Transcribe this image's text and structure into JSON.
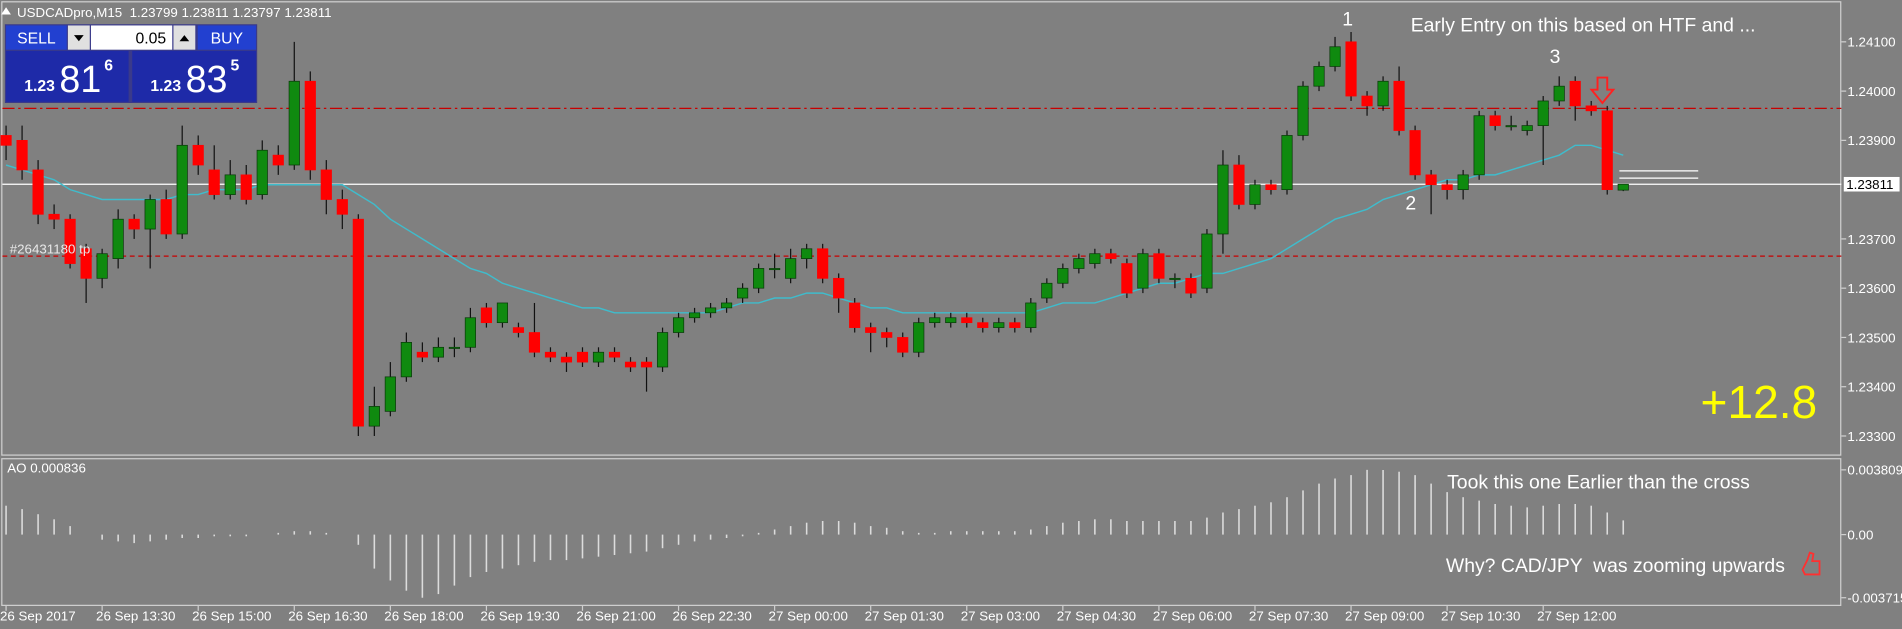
{
  "chart_data": {
    "type": "candlestick",
    "title": "USDCADpro,M15  1.23799 1.23811 1.23797 1.23811",
    "categories": [
      "26 Sep 2017",
      null,
      null,
      null,
      null,
      null,
      "26 Sep 13:30",
      null,
      null,
      null,
      null,
      null,
      "26 Sep 15:00",
      null,
      null,
      null,
      null,
      null,
      "26 Sep 16:30",
      null,
      null,
      null,
      null,
      null,
      "26 Sep 18:00",
      null,
      null,
      null,
      null,
      null,
      "26 Sep 19:30",
      null,
      null,
      null,
      null,
      null,
      "26 Sep 21:00",
      null,
      null,
      null,
      null,
      null,
      "26 Sep 22:30",
      null,
      null,
      null,
      null,
      null,
      "27 Sep 00:00",
      null,
      null,
      null,
      null,
      null,
      "27 Sep 01:30",
      null,
      null,
      null,
      null,
      null,
      "27 Sep 03:00",
      null,
      null,
      null,
      null,
      null,
      "27 Sep 04:30",
      null,
      null,
      null,
      null,
      null,
      "27 Sep 06:00",
      null,
      null,
      null,
      null,
      null,
      "27 Sep 07:30",
      null,
      null,
      null,
      null,
      null,
      "27 Sep 09:00",
      null,
      null,
      null,
      null,
      null,
      "27 Sep 10:30",
      null,
      null,
      null,
      null,
      null,
      "27 Sep 12:00",
      null,
      null,
      null,
      null,
      null
    ],
    "open": [
      1.2391,
      1.239,
      1.2384,
      1.2375,
      1.2374,
      1.2368,
      1.2362,
      1.2366,
      1.2374,
      1.2372,
      1.2378,
      1.2371,
      1.2389,
      1.2384,
      1.2379,
      1.2383,
      1.2379,
      1.2387,
      1.2385,
      1.2402,
      1.2384,
      1.2378,
      1.2374,
      1.2332,
      1.2335,
      1.2342,
      1.2347,
      1.2346,
      1.2348,
      1.2348,
      1.2356,
      1.2353,
      1.2352,
      1.2351,
      1.2347,
      1.2346,
      1.2347,
      1.2345,
      1.2347,
      1.2345,
      1.2345,
      1.2344,
      1.2351,
      1.2354,
      1.2355,
      1.2356,
      1.2358,
      1.236,
      1.2364,
      1.2362,
      1.2366,
      1.2368,
      1.2362,
      1.2357,
      1.2352,
      1.2351,
      1.235,
      1.2347,
      1.2353,
      1.2353,
      1.2354,
      1.2353,
      1.2352,
      1.2353,
      1.2352,
      1.2358,
      1.2361,
      1.2364,
      1.2365,
      1.2367,
      1.2365,
      1.236,
      1.2367,
      1.2362,
      1.2362,
      1.236,
      1.2371,
      1.2385,
      1.2377,
      1.2381,
      1.238,
      1.2391,
      1.2401,
      1.2405,
      1.241,
      1.2399,
      1.2397,
      1.2402,
      1.2392,
      1.2383,
      1.2381,
      1.238,
      1.2383,
      1.2395,
      1.2393,
      1.2392,
      1.2393,
      1.2398,
      1.2402,
      1.2397,
      1.2396,
      1.23799
    ],
    "high": [
      1.2393,
      1.2393,
      1.2386,
      1.2377,
      1.2375,
      1.2369,
      1.2368,
      1.2376,
      1.2375,
      1.2379,
      1.238,
      1.2393,
      1.2391,
      1.2389,
      1.2386,
      1.2385,
      1.239,
      1.2389,
      1.241,
      1.2404,
      1.2386,
      1.238,
      1.2375,
      1.234,
      1.2345,
      1.2351,
      1.2349,
      1.235,
      1.235,
      1.2356,
      1.2357,
      1.2357,
      1.2353,
      1.2357,
      1.2348,
      1.2347,
      1.2348,
      1.2348,
      1.2348,
      1.2346,
      1.2346,
      1.2352,
      1.2355,
      1.2356,
      1.2357,
      1.2358,
      1.2361,
      1.2365,
      1.2367,
      1.2368,
      1.2369,
      1.2369,
      1.2363,
      1.2358,
      1.2353,
      1.2352,
      1.2351,
      1.2354,
      1.2355,
      1.2355,
      1.2355,
      1.2354,
      1.2354,
      1.2354,
      1.2358,
      1.2362,
      1.2365,
      1.2367,
      1.2368,
      1.2368,
      1.2366,
      1.2368,
      1.2368,
      1.2363,
      1.2363,
      1.2372,
      1.2388,
      1.2387,
      1.2382,
      1.2382,
      1.2392,
      1.2402,
      1.2406,
      1.2411,
      1.2412,
      1.24,
      1.2403,
      1.2405,
      1.2393,
      1.2384,
      1.2382,
      1.2384,
      1.2396,
      1.2396,
      1.2395,
      1.2394,
      1.2399,
      1.2403,
      1.2403,
      1.2398,
      1.2397,
      1.23811
    ],
    "low": [
      1.2386,
      1.2382,
      1.2373,
      1.2372,
      1.2364,
      1.2357,
      1.236,
      1.2364,
      1.237,
      1.2364,
      1.237,
      1.237,
      1.2383,
      1.2378,
      1.2378,
      1.2377,
      1.2378,
      1.2383,
      1.2384,
      1.2382,
      1.2375,
      1.2372,
      1.233,
      1.233,
      1.2334,
      1.2341,
      1.2345,
      1.2345,
      1.2346,
      1.2347,
      1.2352,
      1.2352,
      1.235,
      1.2346,
      1.2345,
      1.2343,
      1.2344,
      1.2344,
      1.2345,
      1.2343,
      1.2339,
      1.2343,
      1.235,
      1.2353,
      1.2354,
      1.2355,
      1.2357,
      1.2359,
      1.2362,
      1.2361,
      1.2364,
      1.2361,
      1.2355,
      1.2351,
      1.2347,
      1.2348,
      1.2346,
      1.2346,
      1.2352,
      1.2352,
      1.2352,
      1.2351,
      1.2351,
      1.2351,
      1.2351,
      1.2357,
      1.236,
      1.2363,
      1.2364,
      1.2365,
      1.2358,
      1.2359,
      1.2361,
      1.236,
      1.2358,
      1.2359,
      1.2367,
      1.2376,
      1.2376,
      1.2379,
      1.2379,
      1.239,
      1.24,
      1.2404,
      1.2398,
      1.2395,
      1.2396,
      1.2391,
      1.2382,
      1.2375,
      1.2378,
      1.2378,
      1.2382,
      1.2392,
      1.2392,
      1.2391,
      1.2385,
      1.2397,
      1.2394,
      1.2395,
      1.2379,
      1.23797
    ],
    "close": [
      1.2389,
      1.2384,
      1.2375,
      1.2374,
      1.2365,
      1.2362,
      1.2367,
      1.2374,
      1.2372,
      1.2378,
      1.2371,
      1.2389,
      1.2385,
      1.2379,
      1.2383,
      1.2378,
      1.2388,
      1.2385,
      1.2402,
      1.2384,
      1.2378,
      1.2375,
      1.2332,
      1.2336,
      1.2342,
      1.2349,
      1.2346,
      1.2348,
      1.2348,
      1.2354,
      1.2353,
      1.2357,
      1.2351,
      1.2347,
      1.2346,
      1.2345,
      1.2345,
      1.2347,
      1.2346,
      1.2344,
      1.2344,
      1.2351,
      1.2354,
      1.2355,
      1.2356,
      1.2357,
      1.236,
      1.2364,
      1.2364,
      1.2366,
      1.2368,
      1.2362,
      1.2358,
      1.2352,
      1.2351,
      1.235,
      1.2347,
      1.2353,
      1.2354,
      1.2354,
      1.2353,
      1.2352,
      1.2353,
      1.2352,
      1.2357,
      1.2361,
      1.2364,
      1.2366,
      1.2367,
      1.2366,
      1.2359,
      1.2367,
      1.2362,
      1.2362,
      1.2359,
      1.2371,
      1.2385,
      1.2377,
      1.2381,
      1.238,
      1.2391,
      1.2401,
      1.2405,
      1.2409,
      1.2399,
      1.2397,
      1.2402,
      1.2392,
      1.2383,
      1.2381,
      1.238,
      1.2383,
      1.2395,
      1.2393,
      1.2393,
      1.2393,
      1.2398,
      1.2401,
      1.2397,
      1.2396,
      1.238,
      1.23811
    ],
    "up_color": "#0f8a0f",
    "down_color": "#ff0000",
    "ylim": [
      1.2326,
      1.2418
    ],
    "yticks": [
      {
        "value": 1.233,
        "label": "1.23300"
      },
      {
        "value": 1.234,
        "label": "1.23400"
      },
      {
        "value": 1.235,
        "label": "1.23500"
      },
      {
        "value": 1.236,
        "label": "1.23600"
      },
      {
        "value": 1.237,
        "label": "1.23700"
      },
      {
        "value": 1.239,
        "label": "1.23900"
      },
      {
        "value": 1.24,
        "label": "1.24000"
      },
      {
        "value": 1.241,
        "label": "1.24100"
      }
    ],
    "ma": {
      "color": "#3fbccc",
      "values": [
        1.2385,
        1.2384,
        1.2383,
        1.2382,
        1.238,
        1.2379,
        1.2378,
        1.2378,
        1.2378,
        1.2378,
        1.2378,
        1.2379,
        1.2379,
        1.238,
        1.238,
        1.238,
        1.2381,
        1.2381,
        1.2381,
        1.2381,
        1.2381,
        1.2381,
        1.2379,
        1.2377,
        1.2374,
        1.2372,
        1.237,
        1.2368,
        1.2366,
        1.2364,
        1.2363,
        1.2361,
        1.236,
        1.2359,
        1.2358,
        1.2357,
        1.2356,
        1.2356,
        1.2355,
        1.2355,
        1.2355,
        1.2355,
        1.2355,
        1.2355,
        1.2355,
        1.2356,
        1.2357,
        1.2357,
        1.2358,
        1.2358,
        1.2359,
        1.2359,
        1.2358,
        1.2357,
        1.2356,
        1.2356,
        1.2355,
        1.2355,
        1.2355,
        1.2355,
        1.2355,
        1.2355,
        1.2355,
        1.2355,
        1.2355,
        1.2356,
        1.2357,
        1.2357,
        1.2357,
        1.2358,
        1.2359,
        1.236,
        1.2361,
        1.2361,
        1.2362,
        1.2363,
        1.2363,
        1.2364,
        1.2365,
        1.2366,
        1.2368,
        1.237,
        1.2372,
        1.2374,
        1.2375,
        1.2376,
        1.2378,
        1.2379,
        1.238,
        1.2381,
        1.2382,
        1.2382,
        1.2383,
        1.2383,
        1.2384,
        1.2385,
        1.2386,
        1.2387,
        1.2389,
        1.2389,
        1.2388,
        1.2387
      ]
    },
    "hlines": [
      {
        "value": 1.23965,
        "color": "#c80000",
        "dash": "10 3 2 3"
      },
      {
        "value": 1.23665,
        "color": "#c80000",
        "dash": "4 3"
      }
    ],
    "hline_label": "#26431180 tp",
    "current_price": 1.23811,
    "annotations": [
      "1",
      "2",
      "3",
      "Early Entry on this based on HTF and ...",
      "+12.8",
      "Took this one Earlier than the cross",
      "Why? CAD/JPY  was zooming upwards"
    ],
    "indicator": {
      "type": "bar",
      "label": "AO 0.000836",
      "color": "#dcdcdc",
      "values": [
        0.0017,
        0.0015,
        0.0012,
        0.0009,
        0.0005,
        0.0,
        -0.0003,
        -0.0004,
        -0.0005,
        -0.0004,
        -0.0003,
        -0.0002,
        -0.0002,
        -0.0001,
        -0.0001,
        -0.0001,
        0.0,
        0.0001,
        0.0002,
        0.0002,
        0.0001,
        0.0,
        -0.0006,
        -0.002,
        -0.0027,
        -0.0033,
        -0.003715,
        -0.0035,
        -0.003,
        -0.0025,
        -0.0022,
        -0.002,
        -0.0018,
        -0.0016,
        -0.0015,
        -0.0015,
        -0.0014,
        -0.0013,
        -0.0012,
        -0.0011,
        -0.001,
        -0.0008,
        -0.0006,
        -0.0004,
        -0.0003,
        -0.0002,
        -0.0001,
        0.0001,
        0.0003,
        0.0005,
        0.0007,
        0.0008,
        0.0008,
        0.0007,
        0.0005,
        0.0004,
        0.0002,
        0.0001,
        0.0001,
        0.0002,
        0.0002,
        0.0002,
        0.0002,
        0.0002,
        0.0003,
        0.0005,
        0.0007,
        0.0008,
        0.0009,
        0.0009,
        0.0008,
        0.0008,
        0.0008,
        0.0008,
        0.0008,
        0.001,
        0.0013,
        0.0015,
        0.0017,
        0.0019,
        0.0022,
        0.0026,
        0.003,
        0.0033,
        0.0035,
        0.003809,
        0.0038,
        0.0037,
        0.0035,
        0.003,
        0.0025,
        0.0022,
        0.002,
        0.0018,
        0.0017,
        0.0016,
        0.0017,
        0.0018,
        0.0018,
        0.0017,
        0.0013,
        0.000836
      ],
      "y2lim": [
        -0.0042,
        0.0045
      ],
      "y2ticks": [
        0.003809,
        {
          "value": 0,
          "label": "0.00"
        },
        -0.003715
      ]
    }
  },
  "trade_panel": {
    "sell": "SELL",
    "buy": "BUY",
    "lot": "0.05",
    "bid": {
      "big": "1.23",
      "pips": "81",
      "fraction": "6"
    },
    "ask": {
      "big": "1.23",
      "pips": "83",
      "fraction": "5"
    }
  }
}
